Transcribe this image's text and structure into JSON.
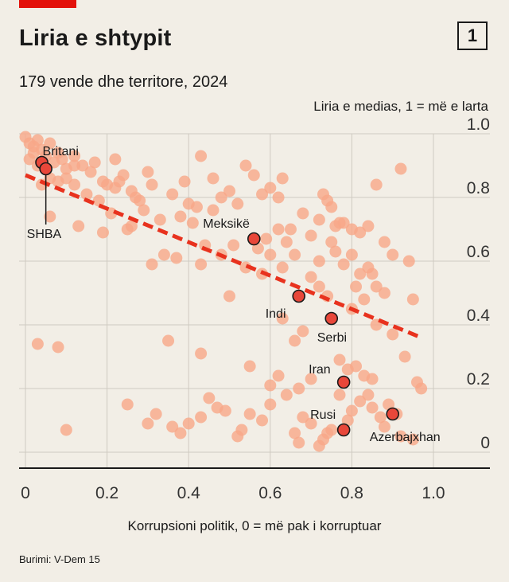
{
  "header": {
    "title": "Liria e shtypit",
    "badge": "1",
    "subtitle": "179 vende dhe territore, 2024"
  },
  "footer": {
    "source": "Burimi: V-Dem 15"
  },
  "colors": {
    "accent": "#e3120b",
    "dot": "#f7a888",
    "highlight": "#e8473a",
    "trend": "#e8321e",
    "grid": "#cfcac1",
    "background": "#f2eee6"
  },
  "chart_data": {
    "type": "scatter",
    "xlabel": "Korrupsioni politik, 0 = më pak i korruptuar",
    "ylabel": "Liria e medias, 1 = më e larta",
    "xlim": [
      0,
      1.1
    ],
    "ylim": [
      -0.05,
      1.0
    ],
    "x_ticks": [
      "0",
      "0.2",
      "0.4",
      "0.6",
      "0.8",
      "1.0"
    ],
    "y_ticks": [
      "1.0",
      "0.8",
      "0.6",
      "0.4",
      "0.2",
      "0"
    ],
    "grid": true,
    "trendline": {
      "x": [
        0,
        0.97
      ],
      "y": [
        0.87,
        0.36
      ]
    },
    "highlighted": [
      {
        "name": "Britani",
        "x": 0.04,
        "y": 0.91
      },
      {
        "name": "SHBA",
        "x": 0.05,
        "y": 0.89
      },
      {
        "name": "Meksikë",
        "x": 0.56,
        "y": 0.67
      },
      {
        "name": "Indi",
        "x": 0.67,
        "y": 0.49
      },
      {
        "name": "Serbi",
        "x": 0.75,
        "y": 0.42
      },
      {
        "name": "Iran",
        "x": 0.78,
        "y": 0.22
      },
      {
        "name": "Rusi",
        "x": 0.78,
        "y": 0.07
      },
      {
        "name": "Azerbajxhan",
        "x": 0.9,
        "y": 0.12
      }
    ],
    "points": [
      [
        0.0,
        0.99
      ],
      [
        0.01,
        0.97
      ],
      [
        0.02,
        0.96
      ],
      [
        0.03,
        0.98
      ],
      [
        0.02,
        0.94
      ],
      [
        0.04,
        0.95
      ],
      [
        0.05,
        0.93
      ],
      [
        0.06,
        0.97
      ],
      [
        0.01,
        0.92
      ],
      [
        0.03,
        0.9
      ],
      [
        0.07,
        0.91
      ],
      [
        0.08,
        0.94
      ],
      [
        0.09,
        0.92
      ],
      [
        0.1,
        0.89
      ],
      [
        0.12,
        0.93
      ],
      [
        0.14,
        0.9
      ],
      [
        0.06,
        0.86
      ],
      [
        0.08,
        0.85
      ],
      [
        0.04,
        0.84
      ],
      [
        0.1,
        0.86
      ],
      [
        0.12,
        0.84
      ],
      [
        0.16,
        0.88
      ],
      [
        0.17,
        0.91
      ],
      [
        0.19,
        0.85
      ],
      [
        0.2,
        0.84
      ],
      [
        0.22,
        0.83
      ],
      [
        0.15,
        0.81
      ],
      [
        0.18,
        0.79
      ],
      [
        0.13,
        0.71
      ],
      [
        0.19,
        0.69
      ],
      [
        0.25,
        0.7
      ],
      [
        0.27,
        0.8
      ],
      [
        0.29,
        0.76
      ],
      [
        0.23,
        0.85
      ],
      [
        0.26,
        0.82
      ],
      [
        0.28,
        0.79
      ],
      [
        0.31,
        0.84
      ],
      [
        0.3,
        0.88
      ],
      [
        0.33,
        0.73
      ],
      [
        0.36,
        0.81
      ],
      [
        0.38,
        0.74
      ],
      [
        0.4,
        0.78
      ],
      [
        0.42,
        0.77
      ],
      [
        0.39,
        0.85
      ],
      [
        0.43,
        0.93
      ],
      [
        0.46,
        0.86
      ],
      [
        0.48,
        0.8
      ],
      [
        0.5,
        0.82
      ],
      [
        0.52,
        0.78
      ],
      [
        0.54,
        0.9
      ],
      [
        0.56,
        0.87
      ],
      [
        0.58,
        0.81
      ],
      [
        0.6,
        0.83
      ],
      [
        0.62,
        0.8
      ],
      [
        0.63,
        0.86
      ],
      [
        0.37,
        0.61
      ],
      [
        0.41,
        0.72
      ],
      [
        0.44,
        0.65
      ],
      [
        0.31,
        0.59
      ],
      [
        0.43,
        0.59
      ],
      [
        0.5,
        0.49
      ],
      [
        0.57,
        0.64
      ],
      [
        0.59,
        0.67
      ],
      [
        0.62,
        0.7
      ],
      [
        0.64,
        0.66
      ],
      [
        0.66,
        0.62
      ],
      [
        0.6,
        0.62
      ],
      [
        0.58,
        0.56
      ],
      [
        0.63,
        0.58
      ],
      [
        0.65,
        0.7
      ],
      [
        0.68,
        0.75
      ],
      [
        0.7,
        0.68
      ],
      [
        0.72,
        0.73
      ],
      [
        0.73,
        0.81
      ],
      [
        0.74,
        0.79
      ],
      [
        0.75,
        0.77
      ],
      [
        0.76,
        0.71
      ],
      [
        0.77,
        0.72
      ],
      [
        0.78,
        0.72
      ],
      [
        0.8,
        0.7
      ],
      [
        0.82,
        0.69
      ],
      [
        0.84,
        0.71
      ],
      [
        0.86,
        0.84
      ],
      [
        0.88,
        0.66
      ],
      [
        0.9,
        0.62
      ],
      [
        0.92,
        0.89
      ],
      [
        0.94,
        0.6
      ],
      [
        0.75,
        0.66
      ],
      [
        0.76,
        0.63
      ],
      [
        0.78,
        0.59
      ],
      [
        0.8,
        0.62
      ],
      [
        0.82,
        0.56
      ],
      [
        0.84,
        0.58
      ],
      [
        0.86,
        0.52
      ],
      [
        0.88,
        0.5
      ],
      [
        0.72,
        0.52
      ],
      [
        0.74,
        0.49
      ],
      [
        0.8,
        0.45
      ],
      [
        0.83,
        0.48
      ],
      [
        0.85,
        0.56
      ],
      [
        0.95,
        0.48
      ],
      [
        0.63,
        0.42
      ],
      [
        0.66,
        0.35
      ],
      [
        0.68,
        0.38
      ],
      [
        0.86,
        0.4
      ],
      [
        0.77,
        0.29
      ],
      [
        0.79,
        0.26
      ],
      [
        0.81,
        0.27
      ],
      [
        0.83,
        0.24
      ],
      [
        0.85,
        0.23
      ],
      [
        0.84,
        0.18
      ],
      [
        0.82,
        0.16
      ],
      [
        0.8,
        0.13
      ],
      [
        0.79,
        0.1
      ],
      [
        0.77,
        0.18
      ],
      [
        0.85,
        0.14
      ],
      [
        0.87,
        0.11
      ],
      [
        0.89,
        0.15
      ],
      [
        0.91,
        0.12
      ],
      [
        0.93,
        0.3
      ],
      [
        0.96,
        0.22
      ],
      [
        0.88,
        0.08
      ],
      [
        0.92,
        0.05
      ],
      [
        0.95,
        0.04
      ],
      [
        0.97,
        0.2
      ],
      [
        0.75,
        0.07
      ],
      [
        0.74,
        0.06
      ],
      [
        0.73,
        0.04
      ],
      [
        0.72,
        0.02
      ],
      [
        0.7,
        0.09
      ],
      [
        0.68,
        0.11
      ],
      [
        0.66,
        0.06
      ],
      [
        0.67,
        0.03
      ],
      [
        0.6,
        0.15
      ],
      [
        0.58,
        0.1
      ],
      [
        0.55,
        0.12
      ],
      [
        0.53,
        0.07
      ],
      [
        0.52,
        0.05
      ],
      [
        0.49,
        0.13
      ],
      [
        0.47,
        0.14
      ],
      [
        0.45,
        0.17
      ],
      [
        0.43,
        0.11
      ],
      [
        0.4,
        0.09
      ],
      [
        0.38,
        0.06
      ],
      [
        0.36,
        0.08
      ],
      [
        0.35,
        0.35
      ],
      [
        0.43,
        0.31
      ],
      [
        0.55,
        0.27
      ],
      [
        0.6,
        0.21
      ],
      [
        0.62,
        0.24
      ],
      [
        0.64,
        0.18
      ],
      [
        0.67,
        0.2
      ],
      [
        0.7,
        0.23
      ],
      [
        0.25,
        0.15
      ],
      [
        0.3,
        0.09
      ],
      [
        0.32,
        0.12
      ],
      [
        0.1,
        0.07
      ],
      [
        0.03,
        0.34
      ],
      [
        0.08,
        0.33
      ],
      [
        0.06,
        0.74
      ],
      [
        0.21,
        0.75
      ],
      [
        0.26,
        0.71
      ],
      [
        0.34,
        0.62
      ],
      [
        0.46,
        0.76
      ],
      [
        0.48,
        0.62
      ],
      [
        0.51,
        0.65
      ],
      [
        0.54,
        0.58
      ],
      [
        0.7,
        0.55
      ],
      [
        0.72,
        0.6
      ],
      [
        0.81,
        0.52
      ],
      [
        0.9,
        0.37
      ],
      [
        0.12,
        0.9
      ],
      [
        0.22,
        0.92
      ],
      [
        0.24,
        0.87
      ]
    ]
  }
}
